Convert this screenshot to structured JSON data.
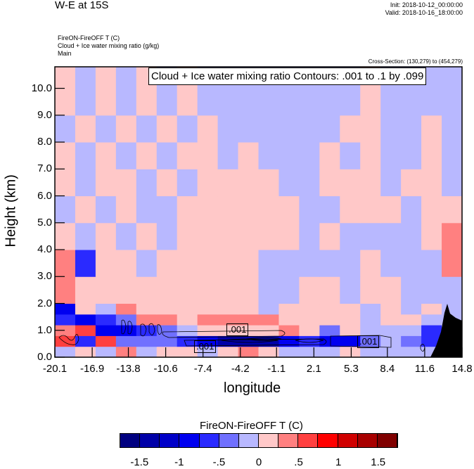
{
  "header": {
    "title": "W-E at 15S",
    "init": "Init: 2018-10-12_00:00:00",
    "valid": "Valid: 2018-10-16_18:00:00",
    "field1": "FireON-FireOFF T   (C)",
    "field2": "Cloud + Ice water mixing ratio   (g/kg)",
    "field3": "Main",
    "cross_section": "Cross-Section: (130,279) to (454,279)"
  },
  "chart_data": {
    "type": "heatmap",
    "title": "W-E at 15S",
    "xlabel": "longitude",
    "ylabel": "Height (km)",
    "xlim": [
      -20.1,
      14.8
    ],
    "ylim": [
      0,
      10.8
    ],
    "x_ticks": [
      "-20.1",
      "-16.9",
      "-13.8",
      "-10.6",
      "-7.4",
      "-4.2",
      "-1.1",
      "2.1",
      "5.3",
      "8.4",
      "11.6",
      "14.8"
    ],
    "y_ticks": [
      "0.0",
      "1.0",
      "2.0",
      "3.0",
      "4.0",
      "5.0",
      "6.0",
      "7.0",
      "8.0",
      "9.0",
      "10.0"
    ],
    "contour_info": "Cloud + Ice water mixing ratio Contours: .001 to .1 by .099",
    "contour_labels": [
      ".001",
      ".001",
      ".001"
    ],
    "row_edges_km": [
      0,
      0.4,
      0.8,
      1.2,
      1.6,
      2.0,
      3.0,
      4.0,
      5.0,
      6.0,
      7.0,
      8.0,
      9.0,
      10.8
    ],
    "values": [
      [
        -0.1,
        0.1,
        -0.1,
        0.4,
        -0.1,
        0.1,
        0.1,
        -0.1,
        0.1,
        0.4,
        0.1,
        -0.1,
        -0.1,
        -0.1,
        0.1,
        -0.1,
        -0.1,
        -0.1,
        -0.1,
        -0.1
      ],
      [
        0.6,
        -0.6,
        0.6,
        -0.4,
        -0.4,
        -0.4,
        -0.6,
        -0.9,
        -1.3,
        -1.3,
        -1.3,
        -0.9,
        -0.6,
        -0.9,
        -0.9,
        -0.4,
        -0.1,
        -0.4,
        -0.6,
        0.1
      ],
      [
        0.4,
        0.6,
        -0.9,
        -0.9,
        -0.6,
        -0.4,
        -0.1,
        0.1,
        0.1,
        0.1,
        0.1,
        0.4,
        0.1,
        -0.4,
        0.1,
        -0.1,
        -0.1,
        -0.1,
        -0.6,
        -0.1
      ],
      [
        -0.6,
        -0.9,
        -0.6,
        -0.4,
        0.4,
        0.4,
        0.1,
        0.4,
        0.4,
        0.4,
        0.4,
        0.1,
        0.1,
        0.1,
        0.1,
        -0.1,
        0.1,
        0.1,
        -0.1,
        -0.1
      ],
      [
        -0.9,
        0.1,
        -0.1,
        0.4,
        0.1,
        0.1,
        0.1,
        0.1,
        0.1,
        0.1,
        -0.1,
        0.1,
        0.1,
        0.1,
        0.1,
        -0.1,
        0.1,
        -0.1,
        0.1,
        -0.1
      ],
      [
        0.4,
        0.1,
        0.1,
        0.1,
        0.1,
        0.1,
        0.1,
        0.1,
        0.1,
        0.1,
        -0.1,
        -0.1,
        0.1,
        0.1,
        -0.1,
        0.1,
        0.1,
        -0.1,
        -0.1,
        -0.1
      ],
      [
        0.4,
        -0.6,
        0.1,
        0.1,
        -0.1,
        0.1,
        0.1,
        0.1,
        0.1,
        0.1,
        -0.1,
        -0.1,
        -0.1,
        -0.1,
        -0.1,
        0.1,
        -0.1,
        -0.1,
        -0.1,
        0.4
      ],
      [
        0.1,
        -0.1,
        0.1,
        -0.1,
        0.1,
        -0.1,
        0.1,
        0.1,
        0.1,
        0.1,
        0.1,
        0.1,
        -0.1,
        0.1,
        -0.1,
        -0.1,
        -0.1,
        -0.1,
        0.1,
        0.4
      ],
      [
        -0.1,
        0.1,
        -0.1,
        0.1,
        -0.1,
        -0.1,
        0.1,
        0.1,
        0.1,
        0.1,
        0.1,
        0.1,
        -0.1,
        -0.1,
        0.1,
        0.1,
        0.1,
        -0.1,
        0.1,
        0.1
      ],
      [
        0.1,
        -0.1,
        0.1,
        0.1,
        -0.1,
        0.1,
        -0.1,
        0.1,
        0.1,
        0.1,
        0.1,
        -0.1,
        -0.1,
        0.1,
        0.1,
        0.1,
        -0.1,
        0.1,
        0.1,
        -0.1
      ],
      [
        0.1,
        -0.1,
        0.1,
        -0.1,
        0.1,
        -0.1,
        0.1,
        0.1,
        -0.1,
        0.1,
        -0.1,
        -0.1,
        -0.1,
        0.1,
        -0.1,
        0.1,
        -0.1,
        -0.1,
        0.1,
        -0.1
      ],
      [
        -0.1,
        0.1,
        -0.1,
        0.1,
        -0.1,
        0.1,
        -0.1,
        0.1,
        -0.1,
        -0.1,
        -0.1,
        -0.1,
        -0.1,
        -0.1,
        0.1,
        0.1,
        -0.1,
        -0.1,
        0.1,
        -0.1
      ],
      [
        0.1,
        -0.1,
        0.1,
        -0.1,
        0.1,
        -0.1,
        0.1,
        -0.1,
        -0.1,
        -0.1,
        -0.1,
        -0.1,
        -0.1,
        -0.1,
        -0.1,
        0.1,
        -0.1,
        -0.1,
        -0.1,
        -0.1
      ]
    ],
    "colorbar": {
      "title": "FireON-FireOFF T  (C)",
      "levels": [
        -1.5,
        -1.25,
        -1,
        -0.75,
        -0.5,
        -0.25,
        0,
        0.25,
        0.5,
        0.75,
        1,
        1.25,
        1.5
      ],
      "tick_labels": [
        "-1.5",
        "-1",
        "-.5",
        "0",
        ".5",
        "1",
        "1.5"
      ],
      "colors": [
        "#000080",
        "#0000a8",
        "#0000c8",
        "#0000f0",
        "#2a2aff",
        "#7070ff",
        "#b8b8ff",
        "#ffc8c8",
        "#ff8080",
        "#ff4040",
        "#ff0000",
        "#d00000",
        "#a80000",
        "#800000"
      ]
    },
    "terrain_color": "#000000",
    "grid": false
  }
}
